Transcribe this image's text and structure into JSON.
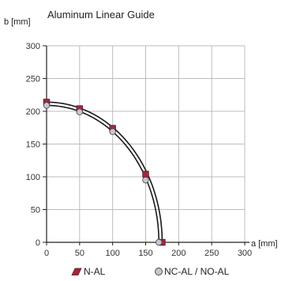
{
  "chart_data": {
    "type": "line",
    "title": "Aluminum Linear Guide",
    "ylabel": "b [mm]",
    "xlabel": "a [mm]",
    "xlim": [
      0,
      300
    ],
    "ylim": [
      0,
      300
    ],
    "xticks": [
      0,
      50,
      100,
      150,
      200,
      250,
      300
    ],
    "yticks": [
      0,
      50,
      100,
      150,
      200,
      250,
      300
    ],
    "grid": true,
    "legend_position": "bottom",
    "series": [
      {
        "name": "N-AL",
        "marker": "square",
        "color": "#9e2a3c",
        "x": [
          0,
          50,
          100,
          150,
          175
        ],
        "y": [
          214,
          204,
          174,
          104,
          0
        ]
      },
      {
        "name": "NC-AL / NO-AL",
        "marker": "circle",
        "color": "#c5c5d6",
        "x": [
          0,
          50,
          100,
          150,
          170
        ],
        "y": [
          209,
          199,
          169,
          95,
          0
        ]
      }
    ]
  }
}
